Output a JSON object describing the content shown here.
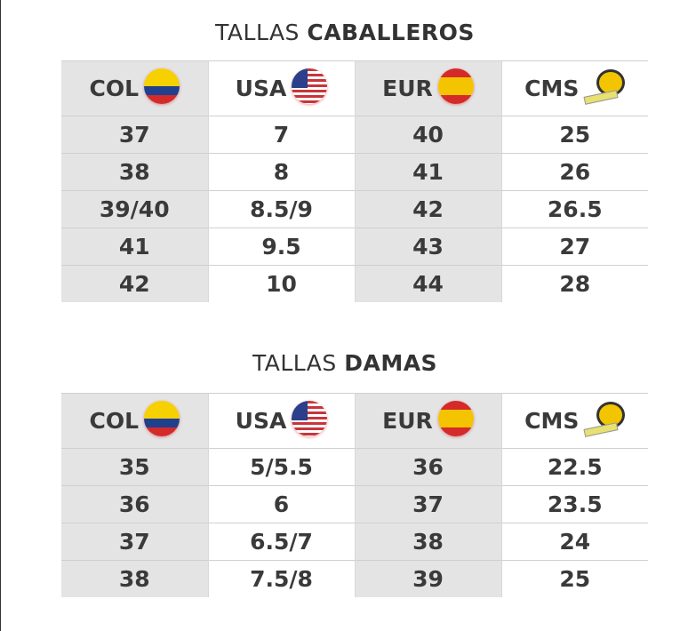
{
  "men": {
    "title_prefix": "TALLAS ",
    "title_bold": "CABALLEROS",
    "headers": [
      {
        "label": "COL",
        "icon": "colombia-flag-icon"
      },
      {
        "label": "USA",
        "icon": "usa-flag-icon"
      },
      {
        "label": "EUR",
        "icon": "spain-flag-icon"
      },
      {
        "label": "CMS",
        "icon": "tape-measure-icon"
      }
    ],
    "rows": [
      [
        "37",
        "7",
        "40",
        "25"
      ],
      [
        "38",
        "8",
        "41",
        "26"
      ],
      [
        "39/40",
        "8.5/9",
        "42",
        "26.5"
      ],
      [
        "41",
        "9.5",
        "43",
        "27"
      ],
      [
        "42",
        "10",
        "44",
        "28"
      ]
    ]
  },
  "women": {
    "title_prefix": "TALLAS ",
    "title_bold": "DAMAS",
    "headers": [
      {
        "label": "COL",
        "icon": "colombia-flag-icon"
      },
      {
        "label": "USA",
        "icon": "usa-flag-icon"
      },
      {
        "label": "EUR",
        "icon": "spain-flag-icon"
      },
      {
        "label": "CMS",
        "icon": "tape-measure-icon"
      }
    ],
    "rows": [
      [
        "35",
        "5/5.5",
        "36",
        "22.5"
      ],
      [
        "36",
        "6",
        "37",
        "23.5"
      ],
      [
        "37",
        "6.5/7",
        "38",
        "24"
      ],
      [
        "38",
        "7.5/8",
        "39",
        "25"
      ]
    ]
  },
  "colors": {
    "shaded_column": "#e4e4e4",
    "text": "#3a3a3a"
  }
}
